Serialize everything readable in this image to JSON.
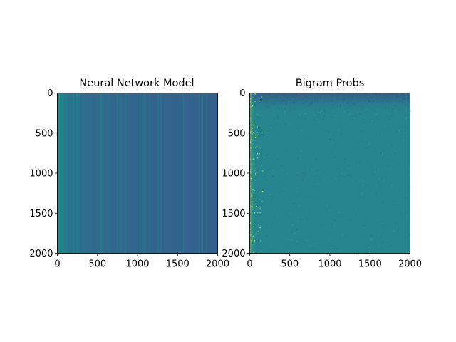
{
  "chart_data": [
    {
      "type": "heatmap",
      "title": "Neural Network Model",
      "xlim": [
        0,
        2000
      ],
      "ylim": [
        0,
        2000
      ],
      "y_inverted": true,
      "x_ticks": [
        0,
        500,
        1000,
        1500,
        2000
      ],
      "y_ticks": [
        0,
        500,
        1000,
        1500,
        2000
      ],
      "x_tick_labels": [
        "0",
        "500",
        "1000",
        "1500",
        "2000"
      ],
      "y_tick_labels": [
        "0",
        "500",
        "1000",
        "1500",
        "2000"
      ],
      "colormap": "viridis",
      "grid": false,
      "column_profile": {
        "x": [
          0,
          50,
          100,
          200,
          400,
          700,
          1000,
          1500,
          2000
        ],
        "level": [
          0.5,
          0.45,
          0.4,
          0.37,
          0.35,
          0.34,
          0.33,
          0.32,
          0.31
        ]
      }
    },
    {
      "type": "heatmap",
      "title": "Bigram Probs",
      "xlim": [
        0,
        2000
      ],
      "ylim": [
        0,
        2000
      ],
      "y_inverted": true,
      "x_ticks": [
        0,
        500,
        1000,
        1500,
        2000
      ],
      "y_ticks": [
        0,
        500,
        1000,
        1500,
        2000
      ],
      "x_tick_labels": [
        "0",
        "500",
        "1000",
        "1500",
        "2000"
      ],
      "y_tick_labels": [
        "0",
        "500",
        "1000",
        "1500",
        "2000"
      ],
      "colormap": "viridis",
      "grid": false,
      "background_level": 0.45,
      "top_rows_level": 0.28,
      "left_column_level": 0.7
    }
  ]
}
